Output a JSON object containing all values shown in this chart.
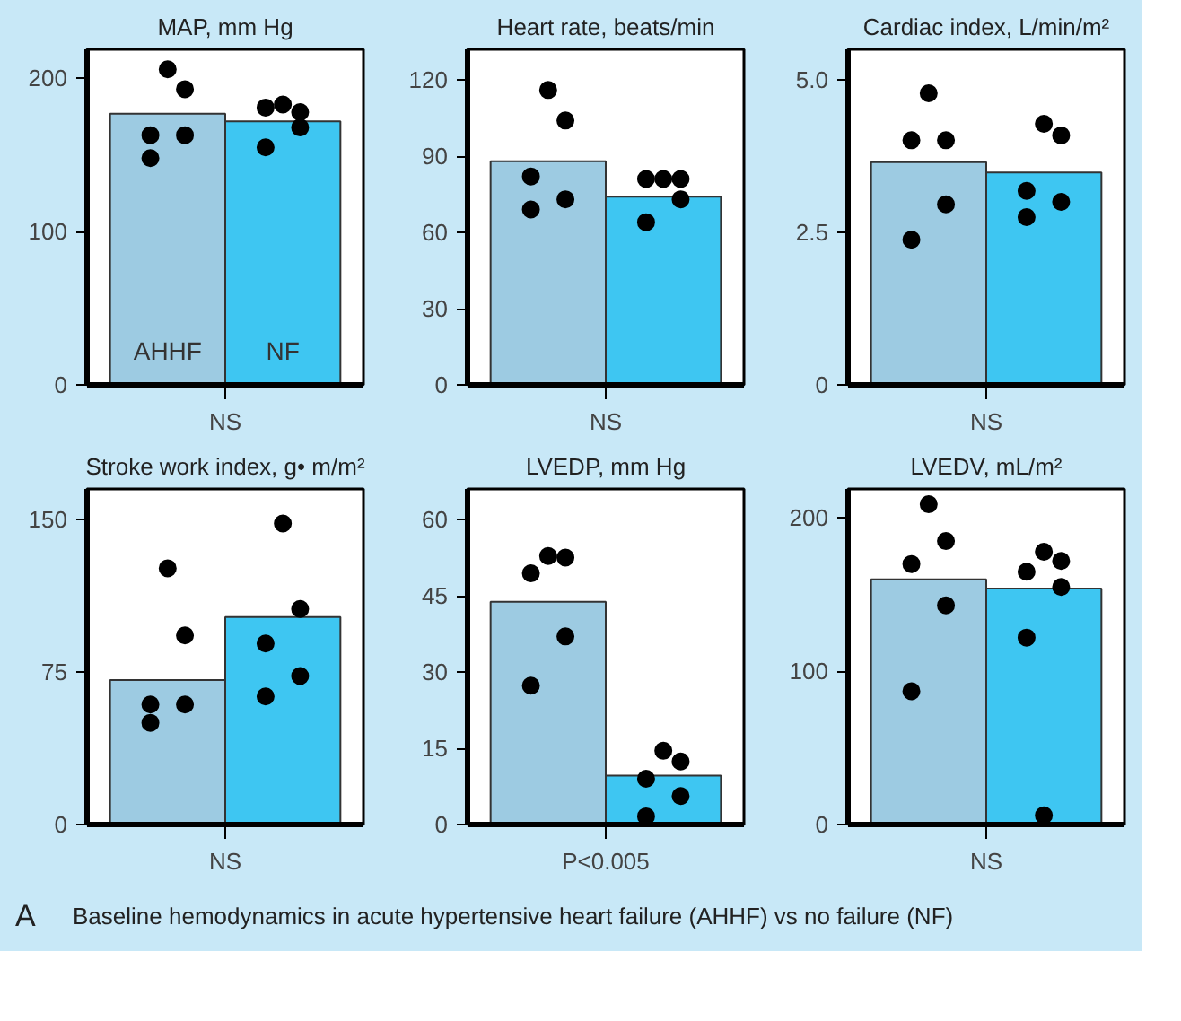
{
  "chart_data": [
    {
      "type": "bar",
      "title": "MAP, mm Hg",
      "categories": [
        "AHHF",
        "NF"
      ],
      "ylim": [
        0,
        219
      ],
      "yticks": [
        0,
        100,
        200
      ],
      "annotations": [
        "NS"
      ],
      "series": [
        {
          "values": [
            177,
            172
          ],
          "colors": [
            "#9dcbe2",
            "#3ec6f2"
          ]
        },
        {
          "type": "scatter",
          "color": "#000000",
          "values": [
            206,
            183
          ]
        },
        {
          "type": "scatter",
          "color": "#000000",
          "values": [
            193,
            178
          ]
        },
        {
          "type": "scatter",
          "color": "#000000",
          "values": [
            163,
            181
          ]
        },
        {
          "type": "scatter",
          "color": "#000000",
          "values": [
            163,
            168
          ]
        },
        {
          "type": "scatter",
          "color": "#000000",
          "values": [
            148,
            155
          ]
        }
      ]
    },
    {
      "type": "bar",
      "title": "Heart rate, beats/min",
      "categories": [
        null,
        null
      ],
      "ylim": [
        0,
        132
      ],
      "yticks": [
        0,
        30,
        60,
        90,
        120
      ],
      "annotations": [
        "NS"
      ],
      "series": [
        {
          "values": [
            88,
            74
          ],
          "colors": [
            "#9dcbe2",
            "#3ec6f2"
          ]
        },
        {
          "type": "scatter",
          "color": "#000000",
          "values": [
            116,
            81
          ]
        },
        {
          "type": "scatter",
          "color": "#000000",
          "values": [
            104,
            81
          ]
        },
        {
          "type": "scatter",
          "color": "#000000",
          "values": [
            82,
            81
          ]
        },
        {
          "type": "scatter",
          "color": "#000000",
          "values": [
            73,
            73
          ]
        },
        {
          "type": "scatter",
          "color": "#000000",
          "values": [
            69,
            64
          ]
        }
      ]
    },
    {
      "type": "bar",
      "title": "Cardiac index, L/min/m²",
      "categories": [
        null,
        null
      ],
      "ylim": [
        0,
        5.5
      ],
      "yticks": [
        {
          "value": 0,
          "label": "0"
        },
        {
          "value": 2.5,
          "label": "2.5"
        },
        {
          "value": 5,
          "label": "5.0"
        }
      ],
      "annotations": [
        "NS"
      ],
      "series": [
        {
          "values": [
            3.65,
            3.48
          ],
          "colors": [
            "#9dcbe2",
            "#3ec6f2"
          ]
        },
        {
          "type": "scatter",
          "color": "#000000",
          "values": [
            4.78,
            4.28
          ]
        },
        {
          "type": "scatter",
          "color": "#000000",
          "values": [
            4.01,
            4.09
          ]
        },
        {
          "type": "scatter",
          "color": "#000000",
          "values": [
            4.01,
            3.18
          ]
        },
        {
          "type": "scatter",
          "color": "#000000",
          "values": [
            2.96,
            3.0
          ]
        },
        {
          "type": "scatter",
          "color": "#000000",
          "values": [
            2.38,
            2.75
          ]
        }
      ]
    },
    {
      "type": "bar",
      "title": "Stroke work index, g• m/m²",
      "categories": [
        null,
        null
      ],
      "ylim": [
        0,
        165
      ],
      "yticks": [
        0,
        75,
        150
      ],
      "annotations": [
        "NS"
      ],
      "series": [
        {
          "values": [
            71,
            102
          ],
          "colors": [
            "#9dcbe2",
            "#3ec6f2"
          ]
        },
        {
          "type": "scatter",
          "color": "#000000",
          "values": [
            126,
            148
          ]
        },
        {
          "type": "scatter",
          "color": "#000000",
          "values": [
            93,
            106
          ]
        },
        {
          "type": "scatter",
          "color": "#000000",
          "values": [
            59,
            89
          ]
        },
        {
          "type": "scatter",
          "color": "#000000",
          "values": [
            59,
            73
          ]
        },
        {
          "type": "scatter",
          "color": "#000000",
          "values": [
            50,
            63
          ]
        }
      ]
    },
    {
      "type": "bar",
      "title": "LVEDP, mm Hg",
      "categories": [
        null,
        null
      ],
      "ylim": [
        0,
        66
      ],
      "yticks": [
        0,
        15,
        30,
        45,
        60
      ],
      "annotations": [
        "P<0.005"
      ],
      "series": [
        {
          "values": [
            43.8,
            9.6
          ],
          "colors": [
            "#9dcbe2",
            "#3ec6f2"
          ]
        },
        {
          "type": "scatter",
          "color": "#000000",
          "values": [
            52.8,
            14.5
          ]
        },
        {
          "type": "scatter",
          "color": "#000000",
          "values": [
            52.5,
            12.4
          ]
        },
        {
          "type": "scatter",
          "color": "#000000",
          "values": [
            49.4,
            9.0
          ]
        },
        {
          "type": "scatter",
          "color": "#000000",
          "values": [
            37,
            5.6
          ]
        },
        {
          "type": "scatter",
          "color": "#000000",
          "values": [
            27.3,
            1.6
          ]
        }
      ]
    },
    {
      "type": "bar",
      "title": "LVEDV, mL/m²",
      "categories": [
        null,
        null
      ],
      "ylim": [
        0,
        219
      ],
      "yticks": [
        0,
        100,
        200
      ],
      "annotations": [
        "NS",
        "A",
        "Baseline hemodynamics in acute hypertensive heart failure (AHHF) vs no failure (NF)"
      ],
      "series": [
        {
          "values": [
            160,
            154
          ],
          "colors": [
            "#9dcbe2",
            "#3ec6f2"
          ]
        },
        {
          "type": "scatter",
          "color": "#000000",
          "values": [
            209,
            178
          ]
        },
        {
          "type": "scatter",
          "color": "#000000",
          "values": [
            185,
            172
          ]
        },
        {
          "type": "scatter",
          "color": "#000000",
          "values": [
            170,
            165
          ]
        },
        {
          "type": "scatter",
          "color": "#000000",
          "values": [
            143,
            155
          ]
        },
        {
          "type": "scatter",
          "color": "#000000",
          "values": [
            87,
            122
          ]
        },
        {
          "type": "scatter",
          "color": "#000000",
          "values": [
            null,
            6
          ]
        }
      ]
    }
  ]
}
